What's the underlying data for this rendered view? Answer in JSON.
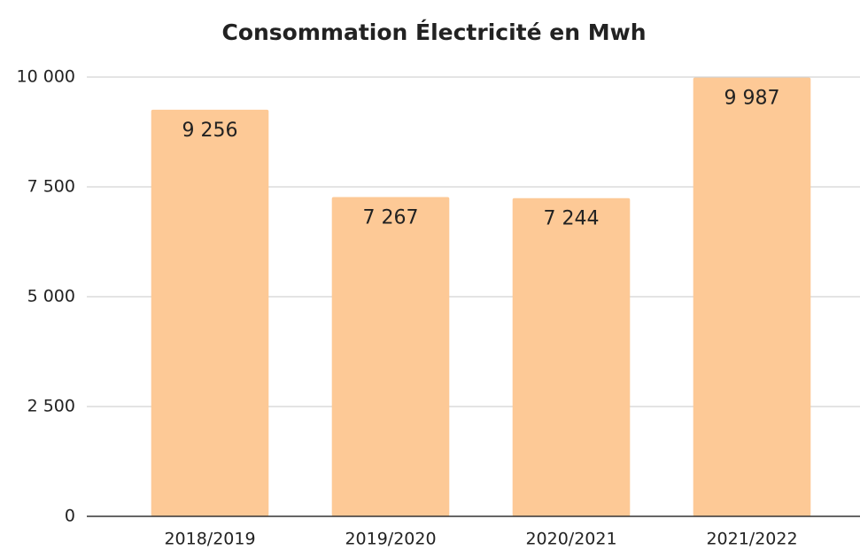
{
  "chart_data": {
    "type": "bar",
    "title": "Consommation Électricité en Mwh",
    "categories": [
      "2018/2019",
      "2019/2020",
      "2020/2021",
      "2021/2022"
    ],
    "values": [
      9256,
      7267,
      7244,
      9987
    ],
    "value_labels": [
      "9 256",
      "7 267",
      "7 244",
      "9 987"
    ],
    "color": "#fdc996",
    "ylim": [
      0,
      10000
    ],
    "yticks": [
      0,
      {
        "value": 2500,
        "label": "2 500"
      },
      {
        "value": 5000,
        "label": "5 000"
      },
      {
        "value": 7500,
        "label": "7 500"
      },
      {
        "value": 10000,
        "label": "10 000"
      }
    ],
    "grid": true
  }
}
